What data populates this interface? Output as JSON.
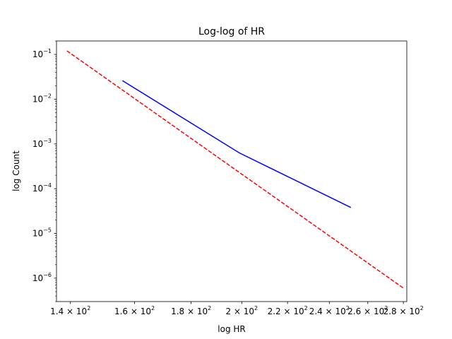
{
  "chart_data": {
    "type": "line",
    "title": "Log-log of HR",
    "xlabel": "log HR",
    "ylabel": "log Count",
    "x_scale": "log",
    "y_scale": "log",
    "xlim": [
      136,
      282
    ],
    "ylim": [
      3e-07,
      0.2
    ],
    "grid": false,
    "legend": "none",
    "x_ticks": [
      {
        "value": 140,
        "mantissa": "1.4",
        "base": "10",
        "exp": "2"
      },
      {
        "value": 160,
        "mantissa": "1.6",
        "base": "10",
        "exp": "2"
      },
      {
        "value": 180,
        "mantissa": "1.8",
        "base": "10",
        "exp": "2"
      },
      {
        "value": 200,
        "mantissa": "2",
        "base": "10",
        "exp": "2"
      },
      {
        "value": 220,
        "mantissa": "2.2",
        "base": "10",
        "exp": "2"
      },
      {
        "value": 240,
        "mantissa": "2.4",
        "base": "10",
        "exp": "2"
      },
      {
        "value": 260,
        "mantissa": "2.6",
        "base": "10",
        "exp": "2"
      },
      {
        "value": 280,
        "mantissa": "2.8",
        "base": "10",
        "exp": "2"
      }
    ],
    "y_ticks": [
      {
        "value": 1e-06,
        "base": "10",
        "exp": "−6"
      },
      {
        "value": 1e-05,
        "base": "10",
        "exp": "−5"
      },
      {
        "value": 0.0001,
        "base": "10",
        "exp": "−4"
      },
      {
        "value": 0.001,
        "base": "10",
        "exp": "−3"
      },
      {
        "value": 0.01,
        "base": "10",
        "exp": "−2"
      },
      {
        "value": 0.1,
        "base": "10",
        "exp": "−1"
      }
    ],
    "series": [
      {
        "color": "#0000ff",
        "dash": "solid",
        "x": [
          156,
          199,
          251
        ],
        "y": [
          0.026,
          0.00063,
          3.8e-05
        ]
      },
      {
        "color": "#ff0000",
        "dash": "dashed",
        "x": [
          139,
          280
        ],
        "y": [
          0.12,
          6e-07
        ]
      }
    ]
  }
}
